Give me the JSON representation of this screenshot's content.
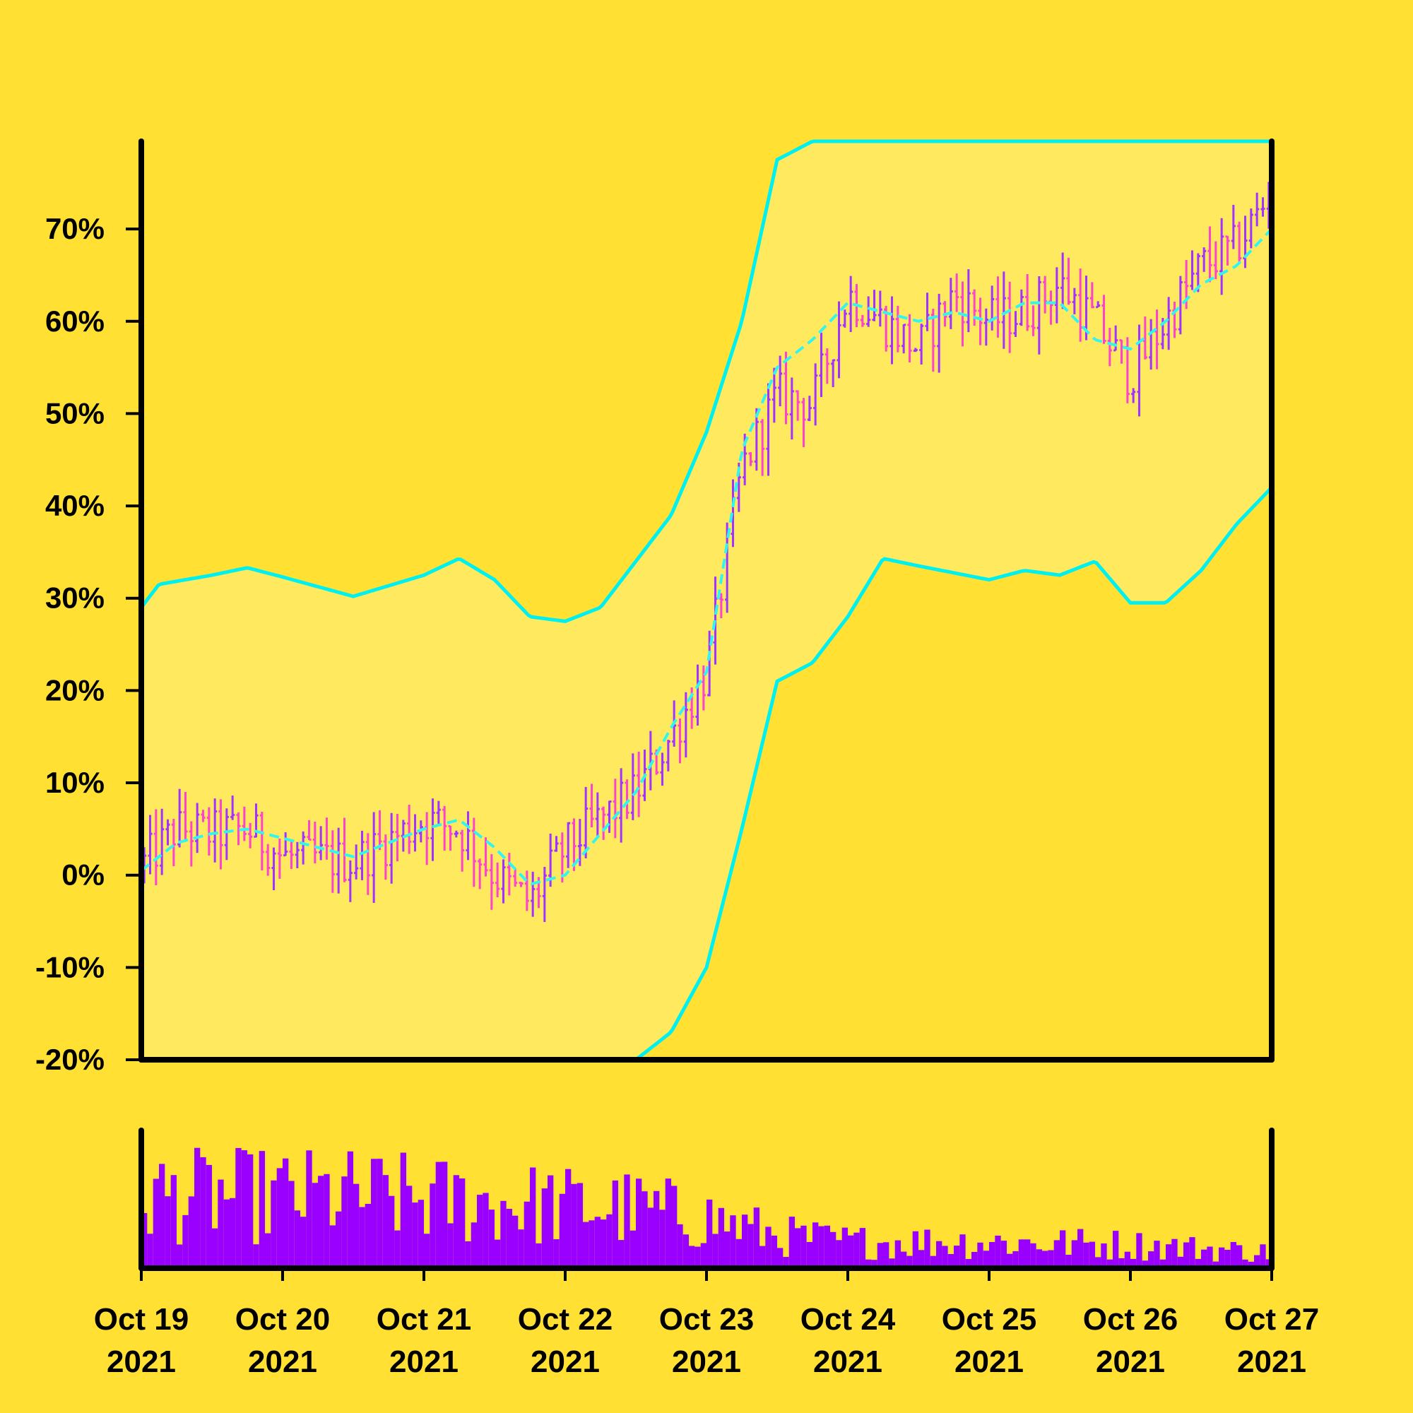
{
  "chart_data": {
    "type": "ohlc",
    "y_tick_labels": [
      "-20%",
      "-10%",
      "0%",
      "10%",
      "20%",
      "30%",
      "40%",
      "50%",
      "60%",
      "70%"
    ],
    "y_ticks": [
      -20,
      -10,
      0,
      10,
      20,
      30,
      40,
      50,
      60,
      70
    ],
    "ylim": [
      -20,
      79.5
    ],
    "x_tick_labels": [
      [
        "Oct 19",
        "2021"
      ],
      [
        "Oct 20",
        "2021"
      ],
      [
        "Oct 21",
        "2021"
      ],
      [
        "Oct 22",
        "2021"
      ],
      [
        "Oct 23",
        "2021"
      ],
      [
        "Oct 24",
        "2021"
      ],
      [
        "Oct 25",
        "2021"
      ],
      [
        "Oct 26",
        "2021"
      ],
      [
        "Oct 27",
        "2021"
      ]
    ],
    "x_ticks": [
      "2021-10-19",
      "2021-10-20",
      "2021-10-21",
      "2021-10-22",
      "2021-10-23",
      "2021-10-24",
      "2021-10-25",
      "2021-10-26",
      "2021-10-27"
    ],
    "xlim": [
      "2021-10-19",
      "2021-10-27"
    ],
    "bars_per_day": 24,
    "price_anchors": [
      [
        "2021-10-19T00:00",
        1
      ],
      [
        "2021-10-19T06:00",
        5
      ],
      [
        "2021-10-19T12:00",
        4.5
      ],
      [
        "2021-10-19T18:00",
        5
      ],
      [
        "2021-10-20T00:00",
        2
      ],
      [
        "2021-10-20T12:00",
        1.5
      ],
      [
        "2021-10-21T00:00",
        6
      ],
      [
        "2021-10-21T06:00",
        5
      ],
      [
        "2021-10-21T12:00",
        0
      ],
      [
        "2021-10-21T18:00",
        -3
      ],
      [
        "2021-10-22T00:00",
        3
      ],
      [
        "2021-10-22T12:00",
        9
      ],
      [
        "2021-10-22T18:00",
        15
      ],
      [
        "2021-10-23T00:00",
        22
      ],
      [
        "2021-10-23T06:00",
        44
      ],
      [
        "2021-10-23T12:00",
        52
      ],
      [
        "2021-10-23T18:00",
        51
      ],
      [
        "2021-10-24T00:00",
        63
      ],
      [
        "2021-10-24T06:00",
        60
      ],
      [
        "2021-10-24T12:00",
        57
      ],
      [
        "2021-10-24T18:00",
        63
      ],
      [
        "2021-10-25T00:00",
        60
      ],
      [
        "2021-10-25T06:00",
        61
      ],
      [
        "2021-10-25T12:00",
        64
      ],
      [
        "2021-10-25T18:00",
        60
      ],
      [
        "2021-10-26T00:00",
        54
      ],
      [
        "2021-10-26T06:00",
        60
      ],
      [
        "2021-10-26T12:00",
        66
      ],
      [
        "2021-10-26T18:00",
        68
      ],
      [
        "2021-10-27T00:00",
        74
      ]
    ],
    "moving_average": [
      [
        "2021-10-19T00:00",
        0.5
      ],
      [
        "2021-10-19T06:00",
        3.5
      ],
      [
        "2021-10-19T12:00",
        4.5
      ],
      [
        "2021-10-19T18:00",
        5
      ],
      [
        "2021-10-20T00:00",
        4
      ],
      [
        "2021-10-20T12:00",
        2
      ],
      [
        "2021-10-21T00:00",
        5
      ],
      [
        "2021-10-21T06:00",
        6
      ],
      [
        "2021-10-21T12:00",
        3
      ],
      [
        "2021-10-21T18:00",
        -1
      ],
      [
        "2021-10-22T00:00",
        0
      ],
      [
        "2021-10-22T12:00",
        9
      ],
      [
        "2021-10-22T18:00",
        16
      ],
      [
        "2021-10-23T00:00",
        22
      ],
      [
        "2021-10-23T06:00",
        46
      ],
      [
        "2021-10-23T12:00",
        55
      ],
      [
        "2021-10-23T18:00",
        58
      ],
      [
        "2021-10-24T00:00",
        62
      ],
      [
        "2021-10-24T06:00",
        61
      ],
      [
        "2021-10-24T12:00",
        60
      ],
      [
        "2021-10-24T18:00",
        61
      ],
      [
        "2021-10-25T00:00",
        60
      ],
      [
        "2021-10-25T06:00",
        62
      ],
      [
        "2021-10-25T12:00",
        62
      ],
      [
        "2021-10-25T18:00",
        58
      ],
      [
        "2021-10-26T00:00",
        57
      ],
      [
        "2021-10-26T06:00",
        60
      ],
      [
        "2021-10-26T12:00",
        64
      ],
      [
        "2021-10-26T18:00",
        66
      ],
      [
        "2021-10-27T00:00",
        70
      ]
    ],
    "band_upper": [
      [
        "2021-10-19T00:00",
        29
      ],
      [
        "2021-10-19T03:00",
        31.5
      ],
      [
        "2021-10-19T12:00",
        32.5
      ],
      [
        "2021-10-19T18:00",
        33.3
      ],
      [
        "2021-10-20T00:00",
        32.3
      ],
      [
        "2021-10-20T12:00",
        30.2
      ],
      [
        "2021-10-21T00:00",
        32.5
      ],
      [
        "2021-10-21T06:00",
        34.3
      ],
      [
        "2021-10-21T12:00",
        32
      ],
      [
        "2021-10-21T18:00",
        28
      ],
      [
        "2021-10-22T00:00",
        27.5
      ],
      [
        "2021-10-22T06:00",
        29
      ],
      [
        "2021-10-22T12:00",
        34
      ],
      [
        "2021-10-22T18:00",
        39
      ],
      [
        "2021-10-23T00:00",
        48
      ],
      [
        "2021-10-23T06:00",
        60
      ],
      [
        "2021-10-23T12:00",
        77.5
      ],
      [
        "2021-10-23T18:00",
        79.5
      ],
      [
        "2021-10-27T00:00",
        79.5
      ]
    ],
    "band_lower": [
      [
        "2021-10-19T00:00",
        -20
      ],
      [
        "2021-10-22T12:00",
        -20
      ],
      [
        "2021-10-22T18:00",
        -17
      ],
      [
        "2021-10-23T00:00",
        -10
      ],
      [
        "2021-10-23T06:00",
        5
      ],
      [
        "2021-10-23T12:00",
        21
      ],
      [
        "2021-10-23T18:00",
        23
      ],
      [
        "2021-10-24T00:00",
        28
      ],
      [
        "2021-10-24T06:00",
        34.3
      ],
      [
        "2021-10-24T12:00",
        33.5
      ],
      [
        "2021-10-25T00:00",
        32
      ],
      [
        "2021-10-25T06:00",
        33
      ],
      [
        "2021-10-25T12:00",
        32.5
      ],
      [
        "2021-10-25T18:00",
        34
      ],
      [
        "2021-10-26T00:00",
        29.5
      ],
      [
        "2021-10-26T06:00",
        29.5
      ],
      [
        "2021-10-26T12:00",
        33
      ],
      [
        "2021-10-26T18:00",
        38
      ],
      [
        "2021-10-27T00:00",
        42
      ]
    ],
    "volume_anchors": [
      [
        "2021-10-19T00:00",
        0.55
      ],
      [
        "2021-10-20T12:00",
        0.55
      ],
      [
        "2021-10-21T12:00",
        0.5
      ],
      [
        "2021-10-22T12:00",
        0.45
      ],
      [
        "2021-10-23T00:00",
        0.38
      ],
      [
        "2021-10-23T12:00",
        0.25
      ],
      [
        "2021-10-24T00:00",
        0.2
      ],
      [
        "2021-10-25T00:00",
        0.2
      ],
      [
        "2021-10-26T00:00",
        0.18
      ],
      [
        "2021-10-27T00:00",
        0.12
      ]
    ],
    "colors": {
      "background": "#FFE033",
      "band_fill": "#FFE95E",
      "band_line": "#00F0F0",
      "ma_line": "#33F5EE",
      "candle_up": "#A033FF",
      "candle_down": "#FF44CC",
      "volume": "#9900FF",
      "axis": "#000000"
    },
    "grid": false,
    "legend": "none"
  }
}
